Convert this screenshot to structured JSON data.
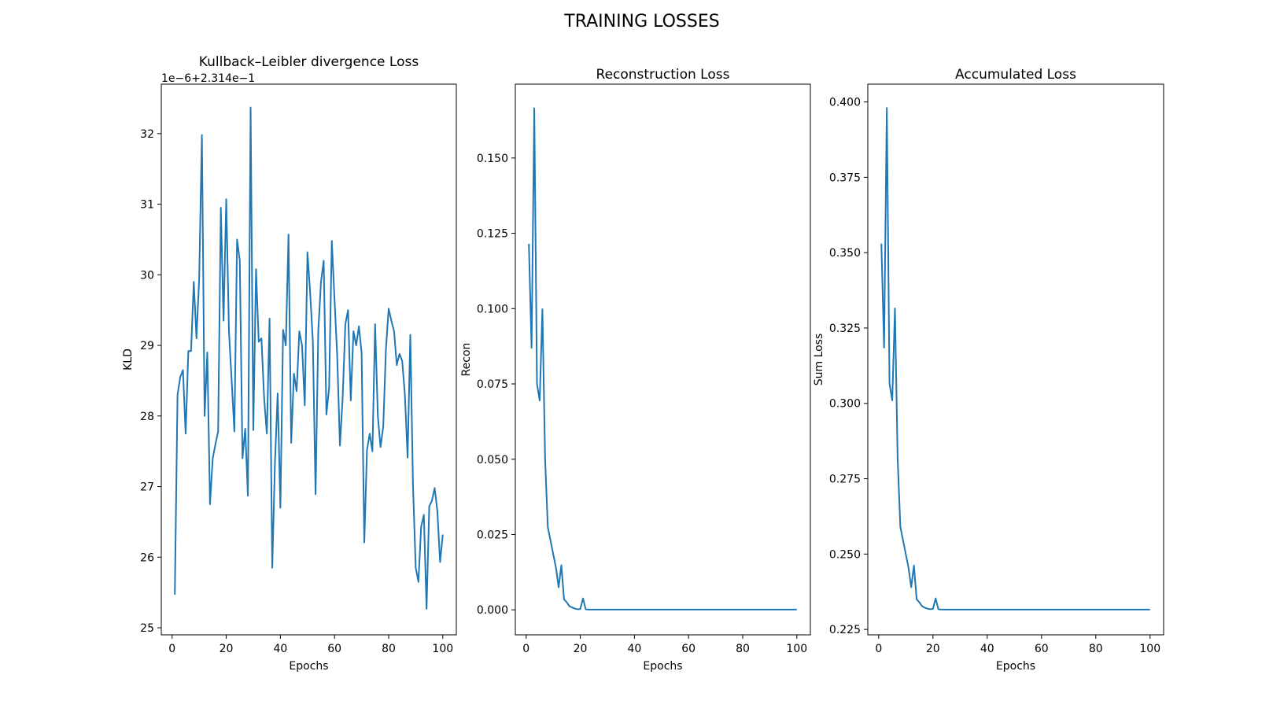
{
  "figure": {
    "title": "TRAINING LOSSES"
  },
  "chart_data": [
    {
      "type": "line",
      "title": "Kullback–Leibler divergence Loss",
      "xlabel": "Epochs",
      "ylabel": "KLD",
      "y_offset_text": "1e−6+2.314e−1",
      "x_range": [
        1,
        100
      ],
      "xlim": [
        -4.0,
        105.0
      ],
      "ylim": [
        24.9,
        32.7
      ],
      "x_ticks": [
        0,
        20,
        40,
        60,
        80,
        100
      ],
      "x_tick_labels": [
        "0",
        "20",
        "40",
        "60",
        "80",
        "100"
      ],
      "y_ticks": [
        25,
        26,
        27,
        28,
        29,
        30,
        31,
        32
      ],
      "y_tick_labels": [
        "25",
        "26",
        "27",
        "28",
        "29",
        "30",
        "31",
        "32"
      ],
      "grid": false,
      "color": "#1f77b4",
      "values": [
        25.47,
        28.3,
        28.55,
        28.65,
        27.75,
        28.92,
        28.92,
        29.9,
        29.1,
        29.95,
        31.98,
        28.0,
        28.9,
        26.75,
        27.4,
        27.6,
        27.78,
        30.95,
        29.35,
        31.07,
        29.2,
        28.5,
        27.78,
        30.5,
        30.2,
        27.4,
        27.82,
        26.87,
        32.37,
        27.8,
        30.08,
        29.05,
        29.1,
        28.25,
        27.75,
        29.38,
        25.85,
        27.35,
        28.32,
        26.7,
        29.22,
        29.0,
        30.57,
        27.62,
        28.6,
        28.35,
        29.2,
        29.0,
        28.15,
        30.32,
        29.75,
        29.05,
        26.89,
        29.2,
        29.9,
        30.2,
        28.02,
        28.4,
        30.48,
        29.65,
        28.85,
        27.58,
        28.25,
        29.3,
        29.5,
        28.22,
        29.2,
        29.0,
        29.27,
        28.9,
        26.21,
        27.52,
        27.75,
        27.5,
        29.3,
        28.0,
        27.56,
        27.85,
        28.95,
        29.52,
        29.35,
        29.2,
        28.72,
        28.88,
        28.78,
        28.3,
        27.41,
        29.15,
        27.0,
        25.85,
        25.65,
        26.43,
        26.6,
        25.27,
        26.72,
        26.8,
        26.98,
        26.65,
        25.93,
        26.32
      ]
    },
    {
      "type": "line",
      "title": "Reconstruction Loss",
      "xlabel": "Epochs",
      "ylabel": "Recon",
      "x_range": [
        1,
        100
      ],
      "xlim": [
        -4.0,
        105.0
      ],
      "ylim": [
        -0.0083,
        0.1745
      ],
      "x_ticks": [
        0,
        20,
        40,
        60,
        80,
        100
      ],
      "x_tick_labels": [
        "0",
        "20",
        "40",
        "60",
        "80",
        "100"
      ],
      "y_ticks": [
        0.0,
        0.025,
        0.05,
        0.075,
        0.1,
        0.125,
        0.15
      ],
      "y_tick_labels": [
        "0.000",
        "0.025",
        "0.050",
        "0.075",
        "0.100",
        "0.125",
        "0.150"
      ],
      "grid": false,
      "color": "#1f77b4",
      "values": [
        0.1215,
        0.087,
        0.1665,
        0.075,
        0.0695,
        0.0998,
        0.05,
        0.0275,
        0.023,
        0.0185,
        0.014,
        0.0075,
        0.0148,
        0.0035,
        0.0025,
        0.0012,
        0.0008,
        0.0004,
        0.0002,
        0.0003,
        0.0038,
        0.0002,
        0.0001,
        0.0001,
        0.0001,
        0.0001,
        0.0001,
        0.0001,
        0.0001,
        0.0001,
        0.0001,
        0.0001,
        0.0001,
        0.0001,
        0.0001,
        0.0001,
        0.0001,
        0.0001,
        0.0001,
        0.0001,
        0.0001,
        0.0001,
        0.0001,
        0.0001,
        0.0001,
        0.0001,
        0.0001,
        0.0001,
        0.0001,
        0.0001,
        0.0001,
        0.0001,
        0.0001,
        0.0001,
        0.0001,
        0.0001,
        0.0001,
        0.0001,
        0.0001,
        0.0001,
        0.0001,
        0.0001,
        0.0001,
        0.0001,
        0.0001,
        0.0001,
        0.0001,
        0.0001,
        0.0001,
        0.0001,
        0.0001,
        0.0001,
        0.0001,
        0.0001,
        0.0001,
        0.0001,
        0.0001,
        0.0001,
        0.0001,
        0.0001,
        0.0001,
        0.0001,
        0.0001,
        0.0001,
        0.0001,
        0.0001,
        0.0001,
        0.0001,
        0.0001,
        0.0001,
        0.0001,
        0.0001,
        0.0001,
        0.0001,
        0.0001,
        0.0001,
        0.0001,
        0.0001,
        0.0001,
        0.0001
      ]
    },
    {
      "type": "line",
      "title": "Accumulated Loss",
      "xlabel": "Epochs",
      "ylabel": "Sum Loss",
      "x_range": [
        1,
        100
      ],
      "xlim": [
        -4.0,
        105.0
      ],
      "ylim": [
        0.2232,
        0.4059
      ],
      "x_ticks": [
        0,
        20,
        40,
        60,
        80,
        100
      ],
      "x_tick_labels": [
        "0",
        "20",
        "40",
        "60",
        "80",
        "100"
      ],
      "y_ticks": [
        0.225,
        0.25,
        0.275,
        0.3,
        0.325,
        0.35,
        0.375,
        0.4
      ],
      "y_tick_labels": [
        "0.225",
        "0.250",
        "0.275",
        "0.300",
        "0.325",
        "0.350",
        "0.375",
        "0.400"
      ],
      "grid": false,
      "color": "#1f77b4",
      "values": [
        0.353,
        0.3185,
        0.398,
        0.3065,
        0.301,
        0.3315,
        0.2815,
        0.259,
        0.2545,
        0.25,
        0.2455,
        0.239,
        0.2462,
        0.235,
        0.234,
        0.2327,
        0.2322,
        0.2319,
        0.2317,
        0.2318,
        0.2353,
        0.2317,
        0.2316,
        0.2316,
        0.2316,
        0.2316,
        0.2316,
        0.2316,
        0.2316,
        0.2316,
        0.2316,
        0.2316,
        0.2316,
        0.2316,
        0.2316,
        0.2316,
        0.2316,
        0.2316,
        0.2316,
        0.2316,
        0.2316,
        0.2316,
        0.2316,
        0.2316,
        0.2316,
        0.2316,
        0.2316,
        0.2316,
        0.2316,
        0.2316,
        0.2316,
        0.2316,
        0.2316,
        0.2316,
        0.2316,
        0.2316,
        0.2316,
        0.2316,
        0.2316,
        0.2316,
        0.2316,
        0.2316,
        0.2316,
        0.2316,
        0.2316,
        0.2316,
        0.2316,
        0.2316,
        0.2316,
        0.2316,
        0.2316,
        0.2316,
        0.2316,
        0.2316,
        0.2316,
        0.2316,
        0.2316,
        0.2316,
        0.2316,
        0.2316,
        0.2316,
        0.2316,
        0.2316,
        0.2316,
        0.2316,
        0.2316,
        0.2316,
        0.2316,
        0.2316,
        0.2316,
        0.2316,
        0.2316,
        0.2316,
        0.2316,
        0.2316,
        0.2316,
        0.2316,
        0.2316,
        0.2316,
        0.2316
      ]
    }
  ]
}
